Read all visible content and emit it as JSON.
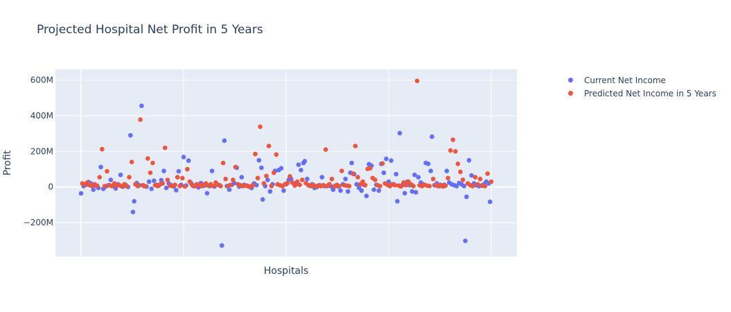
{
  "chart_data": {
    "type": "scatter",
    "title": "Projected Hospital Net Profit in 5 Years",
    "xlabel": "Hospitals",
    "ylabel": "Profit",
    "ylim": [
      -390000000,
      660000000
    ],
    "yticks": [
      -200000000,
      0,
      200000000,
      400000000,
      600000000
    ],
    "ytick_labels": [
      "−200M",
      "0",
      "200M",
      "400M",
      "600M"
    ],
    "grid": true,
    "legend_position": "top-right outside",
    "x_categories_hidden": true,
    "series": [
      {
        "name": "Current Net Income",
        "color": "#636efa",
        "points": [
          [
            0,
            -36
          ],
          [
            2,
            5
          ],
          [
            4,
            12
          ],
          [
            6,
            28
          ],
          [
            8,
            20
          ],
          [
            10,
            -15
          ],
          [
            12,
            8
          ],
          [
            14,
            -5
          ],
          [
            16,
            112
          ],
          [
            18,
            -10
          ],
          [
            20,
            3
          ],
          [
            22,
            10
          ],
          [
            24,
            40
          ],
          [
            26,
            5
          ],
          [
            28,
            -8
          ],
          [
            30,
            15
          ],
          [
            32,
            68
          ],
          [
            34,
            2
          ],
          [
            36,
            12
          ],
          [
            38,
            0
          ],
          [
            40,
            290
          ],
          [
            42,
            -140
          ],
          [
            43,
            -80
          ],
          [
            45,
            22
          ],
          [
            47,
            10
          ],
          [
            49,
            455
          ],
          [
            51,
            5
          ],
          [
            53,
            2
          ],
          [
            55,
            30
          ],
          [
            57,
            -10
          ],
          [
            59,
            35
          ],
          [
            61,
            12
          ],
          [
            63,
            8
          ],
          [
            65,
            38
          ],
          [
            67,
            90
          ],
          [
            69,
            -5
          ],
          [
            71,
            20
          ],
          [
            73,
            10
          ],
          [
            75,
            3
          ],
          [
            77,
            -18
          ],
          [
            79,
            88
          ],
          [
            81,
            12
          ],
          [
            83,
            168
          ],
          [
            85,
            8
          ],
          [
            87,
            148
          ],
          [
            89,
            22
          ],
          [
            91,
            5
          ],
          [
            93,
            12
          ],
          [
            95,
            -2
          ],
          [
            97,
            22
          ],
          [
            100,
            8
          ],
          [
            102,
            -35
          ],
          [
            104,
            5
          ],
          [
            106,
            90
          ],
          [
            108,
            3
          ],
          [
            110,
            15
          ],
          [
            112,
            10
          ],
          [
            114,
            -328
          ],
          [
            116,
            260
          ],
          [
            118,
            5
          ],
          [
            120,
            -15
          ],
          [
            122,
            12
          ],
          [
            124,
            22
          ],
          [
            126,
            108
          ],
          [
            128,
            2
          ],
          [
            130,
            55
          ],
          [
            132,
            12
          ],
          [
            134,
            8
          ],
          [
            136,
            2
          ],
          [
            138,
            -5
          ],
          [
            140,
            20
          ],
          [
            142,
            10
          ],
          [
            144,
            150
          ],
          [
            146,
            108
          ],
          [
            147,
            -70
          ],
          [
            149,
            5
          ],
          [
            151,
            40
          ],
          [
            153,
            -25
          ],
          [
            155,
            15
          ],
          [
            157,
            90
          ],
          [
            160,
            95
          ],
          [
            162,
            105
          ],
          [
            164,
            -20
          ],
          [
            166,
            15
          ],
          [
            168,
            40
          ],
          [
            170,
            45
          ],
          [
            172,
            22
          ],
          [
            174,
            15
          ],
          [
            176,
            125
          ],
          [
            178,
            95
          ],
          [
            180,
            135
          ],
          [
            181,
            145
          ],
          [
            183,
            45
          ],
          [
            185,
            8
          ],
          [
            187,
            15
          ],
          [
            189,
            -5
          ],
          [
            191,
            0
          ],
          [
            193,
            10
          ],
          [
            195,
            55
          ],
          [
            197,
            5
          ],
          [
            200,
            10
          ],
          [
            202,
            5
          ],
          [
            204,
            -15
          ],
          [
            206,
            8
          ],
          [
            208,
            3
          ],
          [
            210,
            -20
          ],
          [
            212,
            15
          ],
          [
            214,
            45
          ],
          [
            216,
            -25
          ],
          [
            218,
            80
          ],
          [
            219,
            135
          ],
          [
            221,
            72
          ],
          [
            223,
            15
          ],
          [
            225,
            -5
          ],
          [
            227,
            -20
          ],
          [
            229,
            12
          ],
          [
            231,
            -50
          ],
          [
            233,
            128
          ],
          [
            235,
            120
          ],
          [
            237,
            -15
          ],
          [
            239,
            12
          ],
          [
            241,
            -20
          ],
          [
            243,
            130
          ],
          [
            245,
            80
          ],
          [
            247,
            158
          ],
          [
            249,
            30
          ],
          [
            251,
            148
          ],
          [
            253,
            15
          ],
          [
            255,
            72
          ],
          [
            256,
            -80
          ],
          [
            258,
            302
          ],
          [
            260,
            10
          ],
          [
            262,
            -35
          ],
          [
            264,
            30
          ],
          [
            266,
            10
          ],
          [
            268,
            -25
          ],
          [
            270,
            68
          ],
          [
            271,
            -30
          ],
          [
            273,
            55
          ],
          [
            275,
            25
          ],
          [
            277,
            15
          ],
          [
            279,
            135
          ],
          [
            281,
            130
          ],
          [
            283,
            90
          ],
          [
            284,
            282
          ],
          [
            286,
            10
          ],
          [
            288,
            20
          ],
          [
            290,
            5
          ],
          [
            292,
            8
          ],
          [
            294,
            12
          ],
          [
            296,
            90
          ],
          [
            298,
            25
          ],
          [
            300,
            15
          ],
          [
            302,
            10
          ],
          [
            304,
            5
          ],
          [
            306,
            22
          ],
          [
            308,
            15
          ],
          [
            310,
            5
          ],
          [
            311,
            -302
          ],
          [
            312,
            -55
          ],
          [
            314,
            150
          ],
          [
            316,
            65
          ],
          [
            318,
            20
          ],
          [
            320,
            10
          ],
          [
            322,
            5
          ],
          [
            324,
            8
          ],
          [
            326,
            15
          ],
          [
            328,
            30
          ],
          [
            330,
            20
          ],
          [
            331,
            -83
          ]
        ]
      },
      {
        "name": "Predicted Net Income in 5 Years",
        "color": "#ef553b",
        "points": [
          [
            1,
            20
          ],
          [
            3,
            15
          ],
          [
            5,
            25
          ],
          [
            7,
            10
          ],
          [
            9,
            5
          ],
          [
            11,
            15
          ],
          [
            13,
            8
          ],
          [
            15,
            55
          ],
          [
            17,
            212
          ],
          [
            19,
            5
          ],
          [
            21,
            88
          ],
          [
            23,
            10
          ],
          [
            25,
            5
          ],
          [
            27,
            20
          ],
          [
            29,
            8
          ],
          [
            31,
            10
          ],
          [
            33,
            3
          ],
          [
            35,
            15
          ],
          [
            37,
            5
          ],
          [
            39,
            55
          ],
          [
            41,
            140
          ],
          [
            44,
            15
          ],
          [
            46,
            5
          ],
          [
            48,
            378
          ],
          [
            50,
            10
          ],
          [
            52,
            5
          ],
          [
            54,
            160
          ],
          [
            56,
            80
          ],
          [
            58,
            135
          ],
          [
            60,
            10
          ],
          [
            62,
            5
          ],
          [
            64,
            15
          ],
          [
            66,
            20
          ],
          [
            68,
            220
          ],
          [
            70,
            40
          ],
          [
            72,
            8
          ],
          [
            74,
            5
          ],
          [
            76,
            12
          ],
          [
            78,
            55
          ],
          [
            80,
            5
          ],
          [
            82,
            50
          ],
          [
            84,
            3
          ],
          [
            86,
            100
          ],
          [
            88,
            30
          ],
          [
            90,
            10
          ],
          [
            92,
            5
          ],
          [
            94,
            15
          ],
          [
            96,
            10
          ],
          [
            98,
            5
          ],
          [
            99,
            12
          ],
          [
            101,
            20
          ],
          [
            103,
            8
          ],
          [
            105,
            15
          ],
          [
            107,
            5
          ],
          [
            109,
            25
          ],
          [
            111,
            12
          ],
          [
            113,
            5
          ],
          [
            115,
            135
          ],
          [
            117,
            45
          ],
          [
            119,
            5
          ],
          [
            121,
            12
          ],
          [
            123,
            40
          ],
          [
            125,
            112
          ],
          [
            127,
            15
          ],
          [
            129,
            10
          ],
          [
            131,
            5
          ],
          [
            133,
            8
          ],
          [
            135,
            5
          ],
          [
            137,
            3
          ],
          [
            139,
            10
          ],
          [
            141,
            185
          ],
          [
            143,
            50
          ],
          [
            145,
            338
          ],
          [
            148,
            20
          ],
          [
            150,
            62
          ],
          [
            152,
            230
          ],
          [
            154,
            5
          ],
          [
            156,
            80
          ],
          [
            158,
            182
          ],
          [
            159,
            15
          ],
          [
            161,
            10
          ],
          [
            163,
            5
          ],
          [
            165,
            15
          ],
          [
            167,
            22
          ],
          [
            169,
            60
          ],
          [
            171,
            25
          ],
          [
            173,
            8
          ],
          [
            175,
            30
          ],
          [
            177,
            12
          ],
          [
            179,
            40
          ],
          [
            182,
            22
          ],
          [
            184,
            10
          ],
          [
            186,
            5
          ],
          [
            188,
            12
          ],
          [
            190,
            3
          ],
          [
            192,
            8
          ],
          [
            194,
            5
          ],
          [
            196,
            10
          ],
          [
            198,
            210
          ],
          [
            199,
            5
          ],
          [
            201,
            15
          ],
          [
            203,
            45
          ],
          [
            205,
            3
          ],
          [
            207,
            12
          ],
          [
            209,
            5
          ],
          [
            211,
            90
          ],
          [
            213,
            10
          ],
          [
            215,
            8
          ],
          [
            217,
            5
          ],
          [
            220,
            75
          ],
          [
            222,
            230
          ],
          [
            224,
            55
          ],
          [
            226,
            15
          ],
          [
            228,
            30
          ],
          [
            230,
            10
          ],
          [
            232,
            102
          ],
          [
            234,
            105
          ],
          [
            236,
            50
          ],
          [
            238,
            40
          ],
          [
            240,
            10
          ],
          [
            242,
            5
          ],
          [
            244,
            132
          ],
          [
            246,
            20
          ],
          [
            248,
            12
          ],
          [
            250,
            5
          ],
          [
            252,
            15
          ],
          [
            254,
            10
          ],
          [
            257,
            8
          ],
          [
            259,
            3
          ],
          [
            261,
            25
          ],
          [
            263,
            10
          ],
          [
            265,
            30
          ],
          [
            267,
            15
          ],
          [
            269,
            5
          ],
          [
            272,
            595
          ],
          [
            274,
            10
          ],
          [
            276,
            5
          ],
          [
            278,
            12
          ],
          [
            280,
            8
          ],
          [
            282,
            5
          ],
          [
            285,
            45
          ],
          [
            287,
            10
          ],
          [
            289,
            5
          ],
          [
            291,
            12
          ],
          [
            293,
            3
          ],
          [
            295,
            8
          ],
          [
            297,
            50
          ],
          [
            299,
            205
          ],
          [
            301,
            265
          ],
          [
            303,
            200
          ],
          [
            305,
            130
          ],
          [
            307,
            85
          ],
          [
            309,
            40
          ],
          [
            313,
            20
          ],
          [
            315,
            10
          ],
          [
            317,
            5
          ],
          [
            319,
            55
          ],
          [
            321,
            15
          ],
          [
            323,
            45
          ],
          [
            325,
            8
          ],
          [
            327,
            5
          ],
          [
            329,
            75
          ],
          [
            332,
            30
          ]
        ]
      }
    ]
  }
}
